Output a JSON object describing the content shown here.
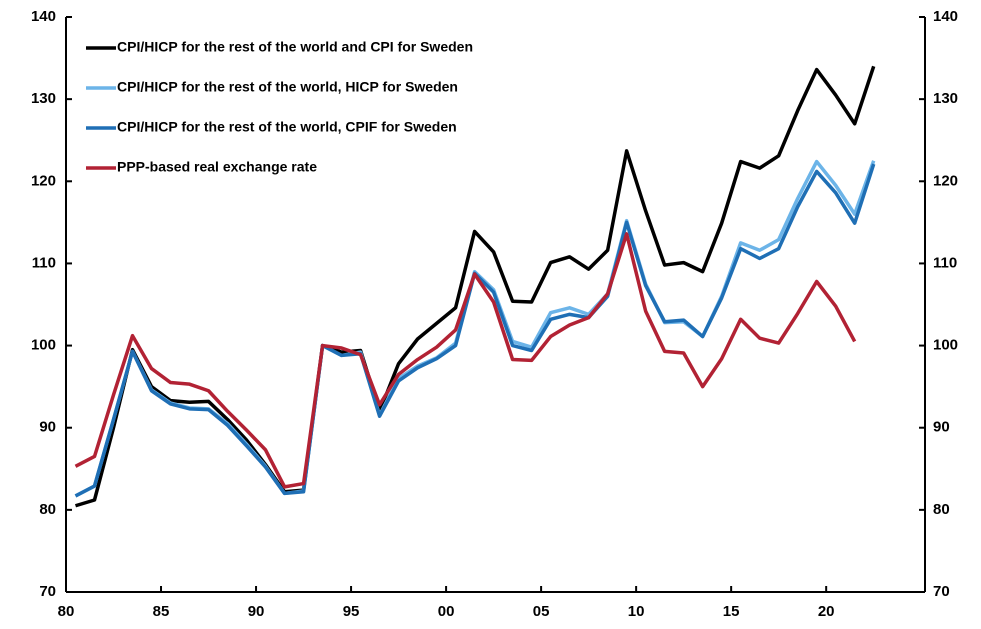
{
  "chart_data": {
    "type": "line",
    "x": [
      1980,
      1981,
      1982,
      1983,
      1984,
      1985,
      1986,
      1987,
      1988,
      1989,
      1990,
      1991,
      1992,
      1993,
      1994,
      1995,
      1996,
      1997,
      1998,
      1999,
      2000,
      2001,
      2002,
      2003,
      2004,
      2005,
      2006,
      2007,
      2008,
      2009,
      2010,
      2011,
      2012,
      2013,
      2014,
      2015,
      2016,
      2017,
      2018,
      2019,
      2020,
      2021,
      2022
    ],
    "series": [
      {
        "name": "CPI/HICP for the rest of the world and CPI for Sweden",
        "color": "#000000",
        "values": [
          80.5,
          81.2,
          90,
          99.5,
          95,
          93.3,
          93.1,
          93.2,
          91,
          88.5,
          85.5,
          82.2,
          82.4,
          100,
          99.2,
          99.4,
          92,
          97.8,
          100.8,
          102.7,
          104.6,
          113.9,
          111.4,
          105.4,
          105.3,
          110.1,
          110.8,
          109.3,
          111.6,
          123.7,
          116.4,
          109.8,
          110.1,
          109.0,
          114.9,
          122.4,
          121.6,
          123.1,
          128.6,
          133.6,
          130.5,
          127.0,
          134.0
        ]
      },
      {
        "name": "CPI/HICP for the rest of the world, HICP for Sweden",
        "color": "#6cb4e8",
        "values": [
          81.7,
          82.9,
          91,
          99.3,
          94.6,
          93,
          92.4,
          92.3,
          90.5,
          88,
          85.3,
          82.0,
          82.3,
          100,
          98.8,
          99.2,
          91.5,
          96,
          97.5,
          98.5,
          100.3,
          109,
          106.8,
          100.5,
          99.8,
          104,
          104.6,
          103.8,
          106.3,
          115.2,
          107.5,
          102.8,
          102.9,
          101.1,
          106,
          112.5,
          111.6,
          112.9,
          117.9,
          122.4,
          119.5,
          116,
          122.5
        ]
      },
      {
        "name": "CPI/HICP for the rest of the world, CPIF for Sweden",
        "color": "#1f6fb5",
        "values": [
          81.7,
          82.9,
          91,
          99.3,
          94.5,
          92.9,
          92.3,
          92.2,
          90.3,
          87.8,
          85.2,
          82.0,
          82.2,
          100,
          98.8,
          99.0,
          91.4,
          95.7,
          97.3,
          98.4,
          100.0,
          108.8,
          106.5,
          100.0,
          99.4,
          103.2,
          103.8,
          103.4,
          106.0,
          115.0,
          107.3,
          102.9,
          103.1,
          101.1,
          105.8,
          111.8,
          110.6,
          111.8,
          116.9,
          121.2,
          118.6,
          114.9,
          122.1
        ]
      },
      {
        "name": "PPP-based real exchange rate",
        "color": "#b22234",
        "values": [
          85.3,
          86.5,
          94,
          101.2,
          97.2,
          95.5,
          95.3,
          94.5,
          92,
          89.7,
          87.3,
          82.8,
          83.2,
          100,
          99.7,
          98.9,
          92.8,
          96.5,
          98.3,
          99.8,
          101.9,
          108.7,
          105.3,
          98.3,
          98.2,
          101.1,
          102.5,
          103.4,
          106.3,
          113.6,
          104.2,
          99.3,
          99.1,
          95,
          98.4,
          103.2,
          100.9,
          100.3,
          103.9,
          107.8,
          104.8,
          100.5,
          null
        ]
      }
    ],
    "xlim": [
      1979.5,
      2024.7
    ],
    "xticks": [
      {
        "value": 1979.5,
        "label": "80"
      },
      {
        "value": 1984.5,
        "label": "85"
      },
      {
        "value": 1989.5,
        "label": "90"
      },
      {
        "value": 1994.5,
        "label": "95"
      },
      {
        "value": 1999.5,
        "label": "00"
      },
      {
        "value": 2004.5,
        "label": "05"
      },
      {
        "value": 2009.5,
        "label": "10"
      },
      {
        "value": 2014.5,
        "label": "15"
      },
      {
        "value": 2019.5,
        "label": "20"
      }
    ],
    "ylim": [
      70,
      140
    ],
    "yticks": [
      70,
      80,
      90,
      100,
      110,
      120,
      130,
      140
    ],
    "y2lim": [
      70,
      140
    ],
    "y2ticks": [
      70,
      80,
      90,
      100,
      110,
      120,
      130,
      140
    ],
    "grid": false,
    "legend": "upper-left"
  }
}
